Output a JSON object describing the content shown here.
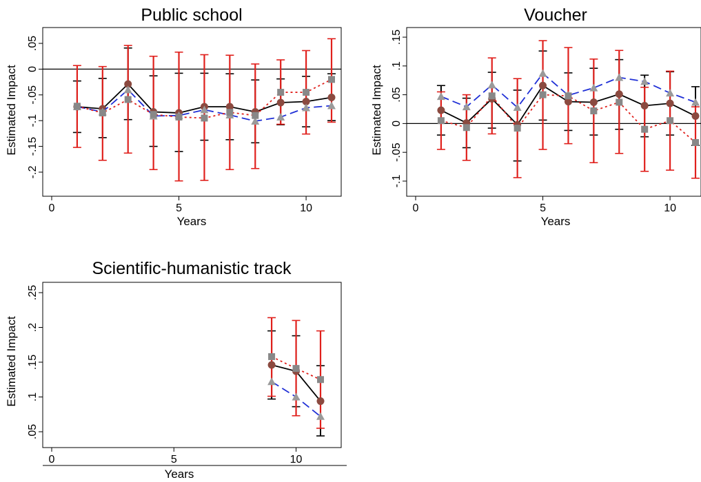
{
  "chart_data": [
    {
      "type": "line",
      "title": "Public school",
      "xlabel": "Years",
      "ylabel": "Estimated Impact",
      "xlim": [
        0,
        11
      ],
      "ylim": [
        -0.25,
        0.07
      ],
      "xticks": [
        0,
        5,
        10
      ],
      "xtick_labels": [
        "0",
        "5",
        "10"
      ],
      "yticks": [
        -0.2,
        -0.15,
        -0.1,
        -0.05,
        0,
        0.05
      ],
      "ytick_labels": [
        "-.2",
        "-.15",
        "-.1",
        "-.05",
        "0",
        ".05"
      ],
      "zero_line": true,
      "x": [
        1,
        2,
        3,
        4,
        5,
        6,
        7,
        8,
        9,
        10,
        11
      ],
      "series": [
        {
          "style": "solid-circle",
          "color": "#000000",
          "marker_color": "#8b4a40",
          "values": [
            -0.073,
            -0.077,
            -0.029,
            -0.083,
            -0.085,
            -0.073,
            -0.073,
            -0.083,
            -0.065,
            -0.063,
            -0.055
          ],
          "ci_low": [
            -0.123,
            -0.133,
            -0.098,
            -0.15,
            -0.16,
            -0.138,
            -0.137,
            -0.143,
            -0.108,
            -0.112,
            -0.1
          ],
          "ci_high": [
            -0.023,
            -0.018,
            0.041,
            -0.013,
            -0.008,
            -0.008,
            -0.009,
            -0.021,
            -0.019,
            -0.014,
            -0.009
          ],
          "ci_color": "#000000"
        },
        {
          "style": "dash-triangle",
          "color": "#1f2fd6",
          "marker_color": "#9a9a9a",
          "values": [
            -0.073,
            -0.083,
            -0.04,
            -0.091,
            -0.09,
            -0.079,
            -0.089,
            -0.101,
            -0.093,
            -0.075,
            -0.071
          ],
          "ci_low": null,
          "ci_high": null
        },
        {
          "style": "dot-square",
          "color": "#e0201c",
          "marker_color": "#888888",
          "values": [
            -0.072,
            -0.085,
            -0.059,
            -0.088,
            -0.093,
            -0.095,
            -0.084,
            -0.09,
            -0.045,
            -0.045,
            -0.02
          ],
          "ci_low": [
            -0.152,
            -0.177,
            -0.163,
            -0.195,
            -0.217,
            -0.216,
            -0.195,
            -0.193,
            -0.107,
            -0.126,
            -0.103
          ],
          "ci_high": [
            0.007,
            0.005,
            0.046,
            0.025,
            0.033,
            0.028,
            0.027,
            0.01,
            0.018,
            0.036,
            0.059
          ],
          "ci_color": "#e0201c"
        }
      ]
    },
    {
      "type": "line",
      "title": "Voucher",
      "xlabel": "Years",
      "ylabel": "Estimated Impact",
      "xlim": [
        0,
        11
      ],
      "ylim": [
        -0.11,
        0.16
      ],
      "xticks": [
        0,
        5,
        10
      ],
      "xtick_labels": [
        "0",
        "5",
        "10"
      ],
      "yticks": [
        -0.1,
        -0.05,
        0,
        0.05,
        0.1,
        0.15
      ],
      "ytick_labels": [
        "-.1",
        "-.05",
        "0",
        ".05",
        ".1",
        ".15"
      ],
      "zero_line": true,
      "x": [
        1,
        2,
        3,
        4,
        5,
        6,
        7,
        8,
        9,
        10,
        11
      ],
      "series": [
        {
          "style": "solid-circle",
          "color": "#000000",
          "marker_color": "#8b4a40",
          "values": [
            0.023,
            0.001,
            0.043,
            -0.002,
            0.066,
            0.038,
            0.037,
            0.051,
            0.031,
            0.035,
            0.013
          ],
          "ci_low": [
            -0.02,
            -0.042,
            -0.008,
            -0.065,
            0.006,
            -0.012,
            -0.02,
            -0.01,
            -0.023,
            -0.02,
            -0.038
          ],
          "ci_high": [
            0.066,
            0.044,
            0.089,
            0.058,
            0.126,
            0.088,
            0.096,
            0.111,
            0.084,
            0.09,
            0.064
          ],
          "ci_color": "#000000"
        },
        {
          "style": "dash-triangle",
          "color": "#1f2fd6",
          "marker_color": "#9a9a9a",
          "values": [
            0.047,
            0.029,
            0.067,
            0.028,
            0.087,
            0.049,
            0.062,
            0.08,
            0.073,
            0.053,
            0.037
          ],
          "ci_low": null,
          "ci_high": null
        },
        {
          "style": "dot-square",
          "color": "#e0201c",
          "marker_color": "#888888",
          "values": [
            0.005,
            -0.007,
            0.048,
            -0.008,
            0.05,
            0.048,
            0.022,
            0.037,
            -0.01,
            0.005,
            -0.033
          ],
          "ci_low": [
            -0.045,
            -0.064,
            -0.018,
            -0.094,
            -0.045,
            -0.035,
            -0.068,
            -0.052,
            -0.083,
            -0.081,
            -0.095
          ],
          "ci_high": [
            0.055,
            0.05,
            0.114,
            0.078,
            0.144,
            0.132,
            0.112,
            0.127,
            0.063,
            0.091,
            0.029
          ],
          "ci_color": "#e0201c"
        }
      ]
    },
    {
      "type": "line",
      "title": "Scientific-humanistic track",
      "xlabel": "Years",
      "ylabel": "Estimated Impact",
      "xlim": [
        0,
        11
      ],
      "ylim": [
        0.04,
        0.26
      ],
      "xticks": [
        0,
        5,
        10
      ],
      "xtick_labels": [
        "0",
        "5",
        "10"
      ],
      "yticks": [
        0.05,
        0.1,
        0.15,
        0.2,
        0.25
      ],
      "ytick_labels": [
        ".05",
        ".1",
        ".15",
        ".2",
        ".25"
      ],
      "zero_line": false,
      "x": [
        9,
        10,
        11
      ],
      "series": [
        {
          "style": "solid-circle",
          "color": "#000000",
          "marker_color": "#8b4a40",
          "values": [
            0.146,
            0.137,
            0.094
          ],
          "ci_low": [
            0.097,
            0.086,
            0.044
          ],
          "ci_high": [
            0.195,
            0.188,
            0.145
          ],
          "ci_color": "#000000"
        },
        {
          "style": "dash-triangle",
          "color": "#1f2fd6",
          "marker_color": "#9a9a9a",
          "values": [
            0.122,
            0.1,
            0.072
          ],
          "ci_low": null,
          "ci_high": null
        },
        {
          "style": "dot-square",
          "color": "#e0201c",
          "marker_color": "#888888",
          "values": [
            0.158,
            0.141,
            0.125
          ],
          "ci_low": [
            0.101,
            0.073,
            0.055
          ],
          "ci_high": [
            0.214,
            0.21,
            0.195
          ],
          "ci_color": "#e0201c"
        }
      ]
    }
  ]
}
